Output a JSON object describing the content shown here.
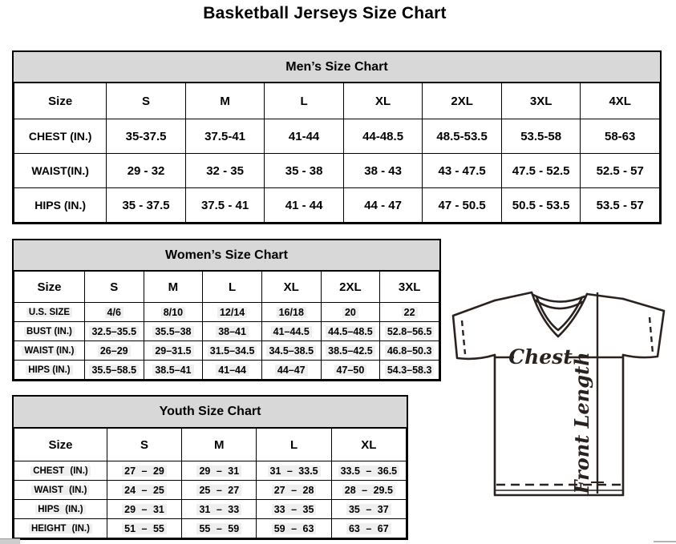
{
  "title": "Basketball Jerseys Size Chart",
  "tables": {
    "men": {
      "title": "Men’s Size Chart",
      "columns": [
        "Size",
        "S",
        "M",
        "L",
        "XL",
        "2XL",
        "3XL",
        "4XL"
      ],
      "rows": [
        {
          "label": "CHEST (IN.)",
          "values": [
            "35-37.5",
            "37.5-41",
            "41-44",
            "44-48.5",
            "48.5-53.5",
            "53.5-58",
            "58-63"
          ]
        },
        {
          "label": "WAIST(IN.)",
          "values": [
            "29 - 32",
            "32 - 35",
            "35 - 38",
            "38 - 43",
            "43 - 47.5",
            "47.5 - 52.5",
            "52.5 - 57"
          ]
        },
        {
          "label": "HIPS (IN.)",
          "values": [
            "35 - 37.5",
            "37.5 - 41",
            "41 - 44",
            "44 - 47",
            "47 - 50.5",
            "50.5 - 53.5",
            "53.5 - 57"
          ]
        }
      ]
    },
    "women": {
      "title": "Women’s Size Chart",
      "columns": [
        "Size",
        "S",
        "M",
        "L",
        "XL",
        "2XL",
        "3XL"
      ],
      "rows": [
        {
          "label": "U.S. SIZE",
          "values": [
            "4/6",
            "8/10",
            "12/14",
            "16/18",
            "20",
            "22"
          ]
        },
        {
          "label": "BUST (IN.)",
          "values": [
            "32.5–35.5",
            "35.5–38",
            "38–41",
            "41–44.5",
            "44.5–48.5",
            "52.8–56.5"
          ]
        },
        {
          "label": "WAIST (IN.)",
          "values": [
            "26–29",
            "29–31.5",
            "31.5–34.5",
            "34.5–38.5",
            "38.5–42.5",
            "46.8–50.3"
          ]
        },
        {
          "label": "HIPS (IN.)",
          "values": [
            "35.5–58.5",
            "38.5–41",
            "41–44",
            "44–47",
            "47–50",
            "54.3–58.3"
          ]
        }
      ]
    },
    "youth": {
      "title": "Youth Size Chart",
      "columns": [
        "Size",
        "S",
        "M",
        "L",
        "XL"
      ],
      "rows": [
        {
          "label": "CHEST (IN.)",
          "values": [
            "27 – 29",
            "29 – 31",
            "31 – 33.5",
            "33.5 – 36.5"
          ]
        },
        {
          "label": "WAIST (IN.)",
          "values": [
            "24 – 25",
            "25 – 27",
            "27 – 28",
            "28 – 29.5"
          ]
        },
        {
          "label": "HIPS (IN.)",
          "values": [
            "29 – 31",
            "31 – 33",
            "33 – 35",
            "35 – 37"
          ]
        },
        {
          "label": "HEIGHT (IN.)",
          "values": [
            "51 – 55",
            "55 – 59",
            "59 – 63",
            "63 – 67"
          ]
        }
      ]
    }
  },
  "diagram": {
    "chest_label": "Chest",
    "front_length_label": "Front Length"
  },
  "colors": {
    "band_background": "#d8d8d8",
    "cell_highlight": "#efefef",
    "diagram_line": "#2a221e"
  }
}
